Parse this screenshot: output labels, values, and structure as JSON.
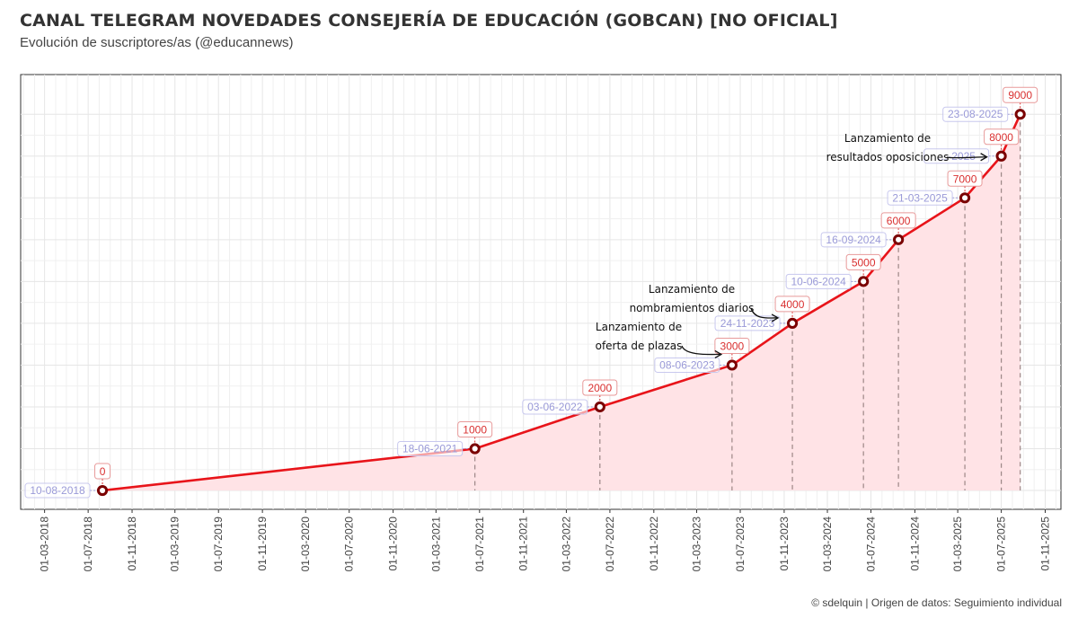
{
  "header": {
    "title": "CANAL TELEGRAM NOVEDADES CONSEJERÍA DE EDUCACIÓN (GOBCAN) [NO OFICIAL]",
    "subtitle": "Evolución de suscriptores/as (@educannews)"
  },
  "footer": {
    "caption": "© sdelquin | Origen de datos: Seguimiento individual"
  },
  "colors": {
    "line": "#e8141a",
    "area": "#ffe3e6",
    "point_stroke": "#7a0000",
    "value_label": "#d93030",
    "date_label": "#9a9ad8",
    "grid": "#e6e6e6"
  },
  "chart_data": {
    "type": "area",
    "title": "CANAL TELEGRAM NOVEDADES CONSEJERÍA DE EDUCACIÓN (GOBCAN) [NO OFICIAL]",
    "subtitle": "Evolución de suscriptores/as (@educannews)",
    "xlabel": "",
    "ylabel": "",
    "x_scale": "date",
    "xlim": [
      "2017-12-24",
      "2025-12-15"
    ],
    "ylim": [
      -450,
      9950
    ],
    "grid": true,
    "legend": "none",
    "y_ticks_shown": false,
    "x_ticks": [
      "01-03-2018",
      "01-07-2018",
      "01-11-2018",
      "01-03-2019",
      "01-07-2019",
      "01-11-2019",
      "01-03-2020",
      "01-07-2020",
      "01-11-2020",
      "01-03-2021",
      "01-07-2021",
      "01-11-2021",
      "01-03-2022",
      "01-07-2022",
      "01-11-2022",
      "01-03-2023",
      "01-07-2023",
      "01-11-2023",
      "01-03-2024",
      "01-07-2024",
      "01-11-2024",
      "01-03-2025",
      "01-07-2025",
      "01-11-2025"
    ],
    "series": [
      {
        "points": [
          {
            "date": "2018-08-10",
            "label": "10-08-2018",
            "value": 0
          },
          {
            "date": "2021-06-18",
            "label": "18-06-2021",
            "value": 1000
          },
          {
            "date": "2022-06-03",
            "label": "03-06-2022",
            "value": 2000
          },
          {
            "date": "2023-06-08",
            "label": "08-06-2023",
            "value": 3000
          },
          {
            "date": "2023-11-24",
            "label": "24-11-2023",
            "value": 4000
          },
          {
            "date": "2024-06-10",
            "label": "10-06-2024",
            "value": 5000
          },
          {
            "date": "2024-09-16",
            "label": "16-09-2024",
            "value": 6000
          },
          {
            "date": "2025-03-21",
            "label": "21-03-2025",
            "value": 7000
          },
          {
            "date": "2025-07-01",
            "label": "…-2025",
            "value": 8000
          },
          {
            "date": "2025-08-23",
            "label": "23-08-2025",
            "value": 9000
          }
        ]
      }
    ],
    "annotations": [
      {
        "lines": [
          "Lanzamiento de",
          "oferta de plazas"
        ],
        "date": "2023-06-08",
        "value": 3000
      },
      {
        "lines": [
          "Lanzamiento de",
          "nombramientos diarios"
        ],
        "date": "2023-11-24",
        "value": 4000
      },
      {
        "lines": [
          "Lanzamiento de",
          "resultados oposiciones"
        ],
        "date": "2025-07-01",
        "value": 8000
      }
    ]
  }
}
